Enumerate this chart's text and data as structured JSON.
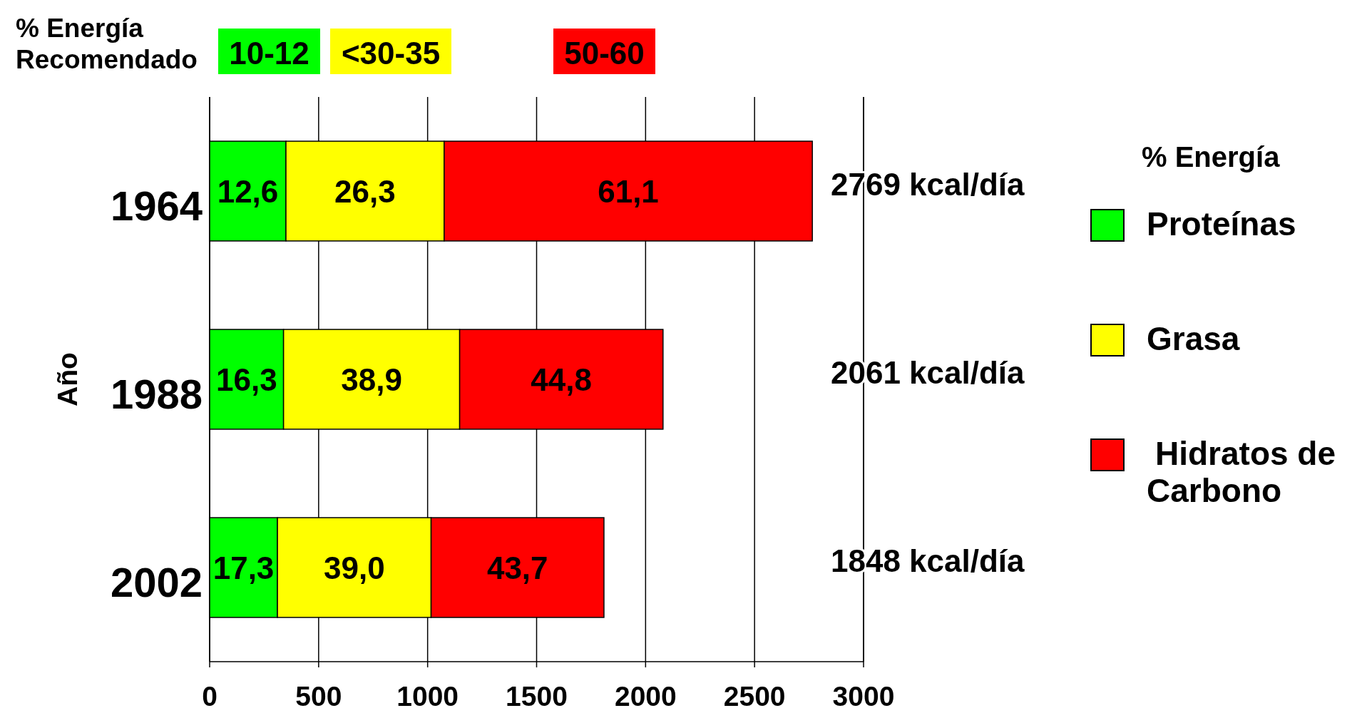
{
  "chart_data": {
    "type": "bar",
    "orientation": "horizontal",
    "stacked": true,
    "ylabel": "Año",
    "legend_title": "% Energía",
    "legend": "right",
    "categories": [
      "1964",
      "1988",
      "2002"
    ],
    "series": [
      {
        "name": "Proteínas",
        "color": "#00ff00",
        "values": [
          350,
          339,
          311
        ]
      },
      {
        "name": "Grasa",
        "color": "#ffff00",
        "values": [
          726,
          808,
          705
        ]
      },
      {
        "name": "Hidratos de Carbono",
        "color": "#ff0000",
        "values": [
          1689,
          933,
          793
        ]
      }
    ],
    "xlim": [
      0,
      3000
    ],
    "xticks": [
      0,
      500,
      1000,
      1500,
      2000,
      2500,
      3000
    ],
    "grid": "x",
    "annotations": [
      "% Energía Recomendado",
      "10-12",
      "<30-35",
      "50-60",
      "12,6",
      "26,3",
      "61,1",
      "16,3",
      "38,9",
      "44,8",
      "17,3",
      "39,0",
      "43,7",
      "2769 kcal/día",
      "2061 kcal/día",
      "1848 kcal/día"
    ]
  }
}
